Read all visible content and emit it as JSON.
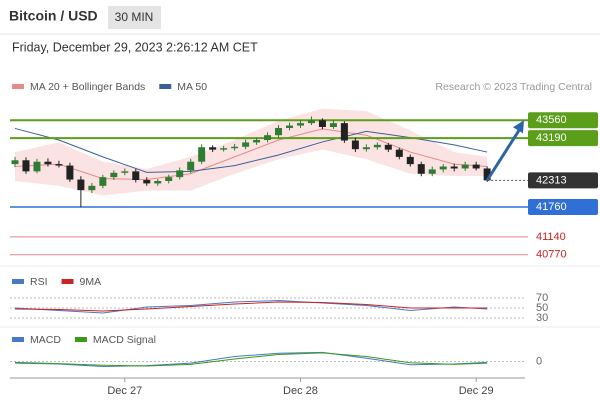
{
  "header": {
    "title": "Bitcoin / USD",
    "interval": "30 MIN",
    "timestamp": "Friday, December 29, 2023 2:26:12 AM CET",
    "credit": "Research © 2023 Trading Central"
  },
  "chart_data": [
    {
      "type": "candlestick",
      "categories": [
        null,
        null,
        null,
        null,
        null,
        null,
        null,
        null,
        null,
        null,
        "Dec 27",
        null,
        null,
        null,
        null,
        null,
        null,
        null,
        null,
        null,
        null,
        null,
        null,
        null,
        null,
        null,
        "Dec 28",
        null,
        null,
        null,
        null,
        null,
        null,
        null,
        null,
        null,
        null,
        null,
        null,
        null,
        null,
        null,
        "Dec 29",
        null
      ],
      "open": [
        42650,
        42730,
        42500,
        42700,
        42650,
        42620,
        42330,
        42110,
        42200,
        42380,
        42470,
        42500,
        42320,
        42250,
        42300,
        42380,
        42520,
        42700,
        43000,
        42950,
        42980,
        43010,
        43100,
        43150,
        43250,
        43400,
        43450,
        43500,
        43560,
        43420,
        43500,
        43140,
        42960,
        43000,
        43050,
        42950,
        42800,
        42650,
        42450,
        42540,
        42600,
        42560,
        42640,
        42560
      ],
      "high": [
        42800,
        42790,
        42760,
        42770,
        42720,
        42680,
        42400,
        42260,
        42430,
        42520,
        42560,
        42550,
        42380,
        42340,
        42430,
        42580,
        42760,
        43060,
        43040,
        43030,
        43070,
        43160,
        43200,
        43310,
        43460,
        43510,
        43560,
        43640,
        43600,
        43560,
        43540,
        43200,
        43060,
        43100,
        43090,
        42990,
        42850,
        42700,
        42600,
        42650,
        42660,
        42700,
        42700,
        42600
      ],
      "low": [
        42590,
        42450,
        42460,
        42600,
        42580,
        42280,
        41760,
        42050,
        42150,
        42320,
        42420,
        42270,
        42200,
        42200,
        42250,
        42330,
        42460,
        42650,
        42900,
        42910,
        42930,
        42960,
        43050,
        43100,
        43200,
        43350,
        43400,
        43460,
        43370,
        43380,
        43090,
        42900,
        42910,
        42950,
        42900,
        42750,
        42600,
        42400,
        42400,
        42480,
        42500,
        42510,
        42520,
        42280
      ],
      "close": [
        42730,
        42500,
        42700,
        42650,
        42620,
        42330,
        42110,
        42200,
        42380,
        42470,
        42500,
        42320,
        42250,
        42300,
        42380,
        42520,
        42700,
        43000,
        42950,
        42980,
        43010,
        43100,
        43150,
        43250,
        43400,
        43450,
        43500,
        43560,
        43420,
        43500,
        43140,
        42960,
        43000,
        43050,
        42950,
        42800,
        42650,
        42450,
        42540,
        42600,
        42560,
        42640,
        42560,
        42313
      ],
      "up_color": "#2e7d32",
      "down_color": "#222222",
      "x": [
        0,
        4,
        8,
        12,
        16,
        20,
        24,
        28,
        32,
        36,
        40,
        43
      ],
      "series": [
        {
          "name": "MA 20 + Bollinger Bands",
          "color": "#e88a8a",
          "band_color": "#fbe3e3",
          "values": [
            42600,
            42650,
            42350,
            42330,
            42450,
            42800,
            43150,
            43380,
            43250,
            42900,
            42650,
            42600
          ],
          "upper": [
            42900,
            43100,
            42700,
            42550,
            42800,
            43150,
            43550,
            43800,
            43750,
            43350,
            42900,
            42800
          ],
          "lower": [
            42300,
            42200,
            42000,
            42100,
            42100,
            42450,
            42750,
            42950,
            42750,
            42450,
            42400,
            42400
          ]
        },
        {
          "name": "MA 50",
          "color": "#3a5f9a",
          "values": [
            43390,
            43150,
            42800,
            42480,
            42500,
            42620,
            42840,
            43110,
            43330,
            43200,
            43050,
            42900
          ]
        }
      ],
      "levels": [
        {
          "value": 43560,
          "color": "#5a9e1a"
        },
        {
          "value": 43190,
          "color": "#5a9e1a"
        },
        {
          "value": 42313,
          "color": "#333333"
        },
        {
          "value": 41760,
          "color": "#2f6fd6"
        },
        {
          "value": 41140,
          "color": "#cc2222"
        },
        {
          "value": 40770,
          "color": "#cc2222"
        }
      ],
      "ylim": [
        40620,
        43980
      ]
    },
    {
      "type": "line",
      "x": [
        0,
        4,
        8,
        12,
        16,
        20,
        24,
        28,
        32,
        36,
        40,
        43
      ],
      "series": [
        {
          "name": "RSI",
          "color": "#4a78c8",
          "values": [
            50,
            45,
            40,
            52,
            55,
            62,
            65,
            60,
            55,
            45,
            52,
            48
          ]
        },
        {
          "name": "9MA",
          "color": "#cc2222",
          "values": [
            48,
            47,
            44,
            48,
            53,
            58,
            62,
            61,
            57,
            50,
            50,
            50
          ]
        }
      ],
      "ylim": [
        22,
        86
      ],
      "yticks": [
        70,
        50,
        30
      ]
    },
    {
      "type": "line",
      "x": [
        0,
        4,
        8,
        12,
        16,
        20,
        24,
        28,
        32,
        36,
        40,
        43
      ],
      "series": [
        {
          "name": "MACD",
          "color": "#4a78c8",
          "values": [
            -20,
            -30,
            -60,
            -50,
            -20,
            60,
            100,
            110,
            40,
            -40,
            -30,
            -10
          ]
        },
        {
          "name": "MACD Signal",
          "color": "#3a9a1a",
          "values": [
            -10,
            -25,
            -45,
            -55,
            -35,
            30,
            85,
            105,
            60,
            -15,
            -35,
            -20
          ]
        }
      ],
      "ylim": [
        -200,
        200
      ],
      "yticks": [
        0
      ]
    }
  ]
}
